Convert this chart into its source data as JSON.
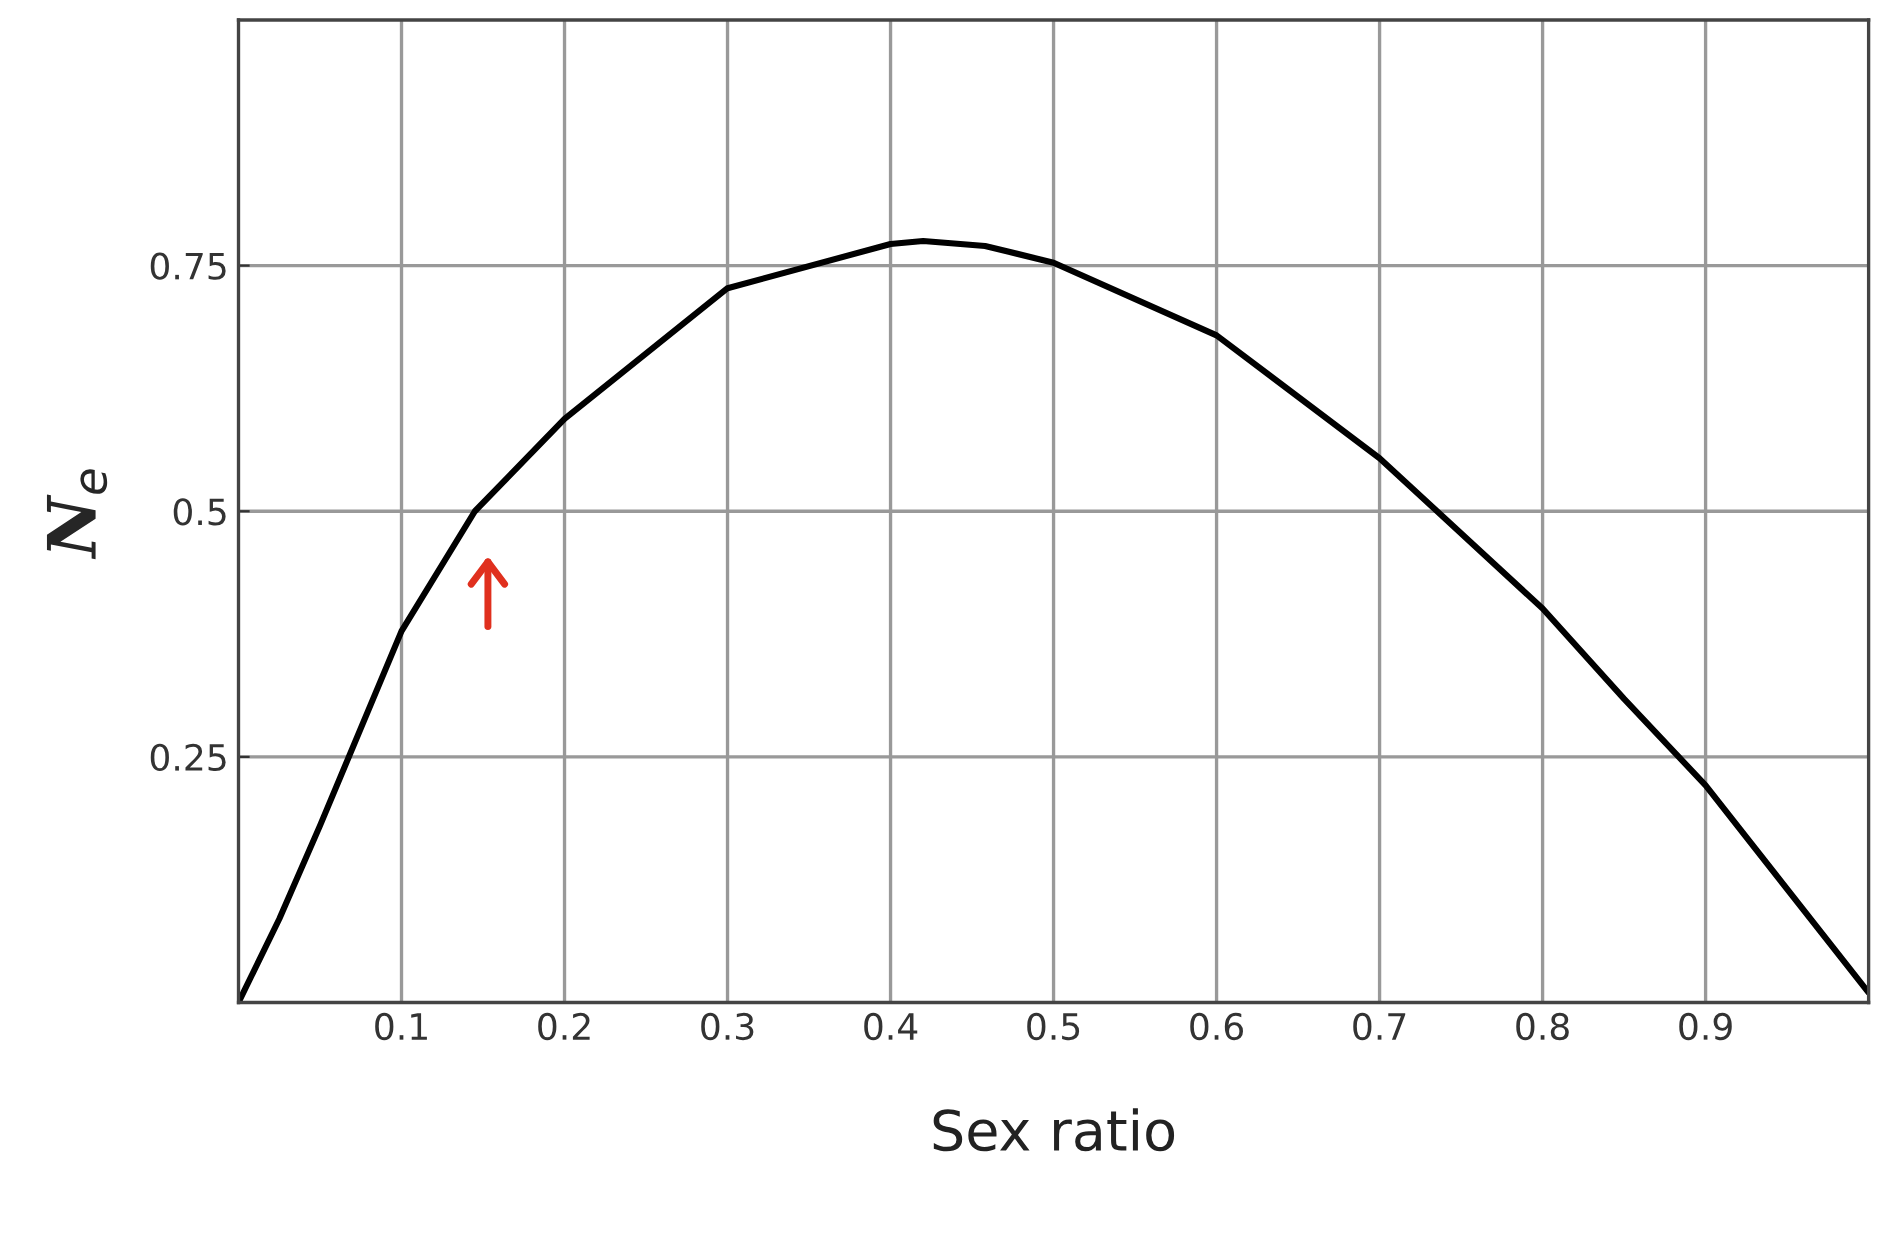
{
  "chart_data": {
    "type": "line",
    "xlabel": "Sex ratio",
    "ylabel": "N$_{e}$",
    "x": [
      0,
      0.025,
      0.05,
      0.1,
      0.145,
      0.2,
      0.3,
      0.4,
      0.42,
      0.458,
      0.5,
      0.6,
      0.7,
      0.8,
      0.85,
      0.9,
      1.0
    ],
    "series": [
      {
        "color": "#000000",
        "values": [
          0,
          0.085,
          0.18,
          0.378,
          0.5,
          0.594,
          0.727,
          0.772,
          0.775,
          0.77,
          0.753,
          0.679,
          0.554,
          0.401,
          0.309,
          0.221,
          0.01
        ]
      }
    ],
    "xlim": [
      0,
      1
    ],
    "ylim": [
      0,
      1
    ],
    "xticks": [
      0.1,
      0.2,
      0.3,
      0.4,
      0.5,
      0.6,
      0.7,
      0.8,
      0.9
    ],
    "yticks": [
      0.25,
      0.5,
      0.75
    ],
    "grid": true,
    "marker": "none",
    "line_style": "solid"
  }
}
